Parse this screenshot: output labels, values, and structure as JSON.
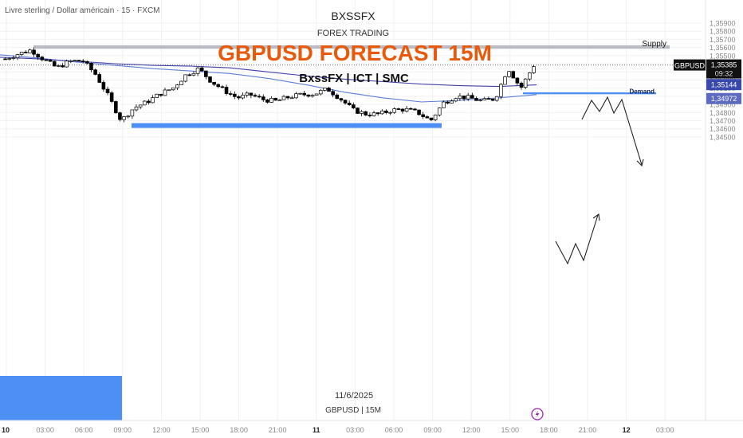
{
  "header": {
    "symbol_desc": "Livre sterling / Dollar américain · 15 · FXCM",
    "brand": "BXSSFX",
    "subtitle": "FOREX TRADING",
    "title": "GBPUSD FORECAST 15M",
    "tagline": "BxssFX | ICT | SMC"
  },
  "footer": {
    "date": "11/6/2025",
    "pair_tf": "GBPUSD | 15M"
  },
  "colors": {
    "title": "#e8590c",
    "zone_gray": "#b9bcc4",
    "zone_blue": "#4d8ff5",
    "ma_line": "#3f51b5",
    "candle": "#000000"
  },
  "chart_data": {
    "type": "candlestick",
    "y_axis": {
      "ticks": [
        "1,35900",
        "1,35800",
        "1,35700",
        "1,35600",
        "1,35500",
        "1,35400",
        "1,35300",
        "1,35200",
        "1,35100",
        "1,35000",
        "1,34900",
        "1,34800",
        "1,34700",
        "1,34600",
        "1,34500"
      ],
      "ylim": [
        1.345,
        1.3592
      ]
    },
    "x_axis": {
      "ticks": [
        "10",
        "03:00",
        "06:00",
        "09:00",
        "12:00",
        "15:00",
        "18:00",
        "21:00",
        "11",
        "03:00",
        "06:00",
        "09:00",
        "12:00",
        "15:00",
        "18:00",
        "21:00",
        "12",
        "03:00"
      ],
      "bold_ticks": [
        "10",
        "11",
        "12"
      ]
    },
    "zones": [
      {
        "label": "Supply",
        "low": 1.35585,
        "high": 1.35627
      },
      {
        "label": "Demand",
        "low": 1.35025,
        "high": 1.35048
      }
    ],
    "levels": [
      {
        "label": "",
        "price": 1.3464
      },
      {
        "label": "",
        "price": 1.3462
      }
    ],
    "price_labels": [
      {
        "name": "GBPUSD",
        "value": "1,35385",
        "time": "09:32"
      },
      {
        "name": "",
        "value": "1,35144"
      },
      {
        "name": "",
        "value": "1,34972"
      }
    ],
    "current_price": 1.35385,
    "ma_fast": [
      1.3551,
      1.3547,
      1.3542,
      1.3538,
      1.3534,
      1.3531,
      1.3528,
      1.3522,
      1.3514,
      1.3505,
      1.3498,
      1.3493,
      1.3495,
      1.3498,
      1.3502
    ],
    "ma_slow": [
      1.3548,
      1.3546,
      1.3543,
      1.354,
      1.3538,
      1.3537,
      1.3535,
      1.353,
      1.3525,
      1.3521,
      1.3518,
      1.3515,
      1.3513,
      1.3512,
      1.3514
    ],
    "candles_close": [
      1.3546,
      1.3552,
      1.3557,
      1.3545,
      1.3535,
      1.3543,
      1.3544,
      1.3527,
      1.35,
      1.347,
      1.3486,
      1.3493,
      1.3503,
      1.351,
      1.3526,
      1.3534,
      1.3518,
      1.3507,
      1.3498,
      1.3502,
      1.3496,
      1.3494,
      1.3499,
      1.3502,
      1.3503,
      1.3509,
      1.3497,
      1.3483,
      1.3478,
      1.3478,
      1.3483,
      1.3484,
      1.348,
      1.347,
      1.3492,
      1.35,
      1.3498,
      1.3494,
      1.3497,
      1.3535,
      1.351,
      1.3538
    ]
  }
}
